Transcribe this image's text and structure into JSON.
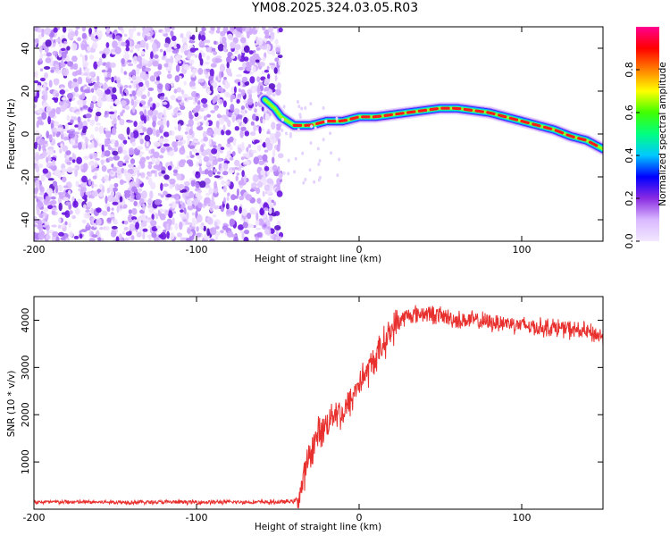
{
  "title": "YM08.2025.324.03.05.R03",
  "colors": {
    "axis": "#000000",
    "snr_line": "#e8302e",
    "noise": "#6a14e0",
    "ridge_core": "#e8302e"
  },
  "chart_data": [
    {
      "type": "heatmap",
      "title": "YM08.2025.324.03.05.R03",
      "xlabel": "Height of straight line (km)",
      "ylabel": "Frequency (Hz)",
      "xlim": [
        -200,
        150
      ],
      "ylim": [
        -50,
        50
      ],
      "xticks": [
        -200,
        -100,
        0,
        100
      ],
      "yticks": [
        -40,
        -20,
        0,
        20,
        40
      ],
      "xtick_labels": [
        "-200",
        "-100",
        "0",
        "100"
      ],
      "ytick_labels": [
        "-40",
        "-20",
        "0",
        "20",
        "40"
      ],
      "noise_region_x": [
        -200,
        -48
      ],
      "ridge": {
        "x": [
          -58,
          -52,
          -48,
          -40,
          -30,
          -20,
          -10,
          0,
          10,
          20,
          30,
          40,
          50,
          60,
          70,
          80,
          90,
          100,
          110,
          120,
          130,
          140,
          150
        ],
        "y": [
          16,
          12,
          8,
          4,
          4,
          6,
          6,
          8,
          8,
          9,
          10,
          11,
          12,
          12,
          11,
          10,
          8,
          6,
          4,
          2,
          -1,
          -3,
          -7
        ]
      },
      "colorbar": {
        "label": "Normalized spectral amplitude",
        "range": [
          0,
          1
        ],
        "ticks": [
          0.0,
          0.2,
          0.4,
          0.6,
          0.8
        ],
        "tick_labels": [
          "0.0",
          "0.2",
          "0.4",
          "0.6",
          "0.8"
        ],
        "colormap": [
          "#f2e8ff",
          "#d9b8ff",
          "#8a2be2",
          "#0000ff",
          "#00c8ff",
          "#00ff80",
          "#40ff00",
          "#ffff00",
          "#ff8000",
          "#ff0000",
          "#ff0090"
        ]
      }
    },
    {
      "type": "line",
      "xlabel": "Height of straight line (km)",
      "ylabel": "SNR (10 * v/v)",
      "xlim": [
        -200,
        150
      ],
      "ylim": [
        0,
        4500
      ],
      "xticks": [
        -200,
        -100,
        0,
        100
      ],
      "yticks": [
        1000,
        2000,
        3000,
        4000
      ],
      "xtick_labels": [
        "-200",
        "-100",
        "0",
        "100"
      ],
      "ytick_labels": [
        "1000",
        "2000",
        "3000",
        "4000"
      ],
      "series": [
        {
          "name": "SNR",
          "x": [
            -200,
            -150,
            -100,
            -50,
            -40,
            -37,
            -35,
            -33,
            -30,
            -25,
            -20,
            -15,
            -10,
            -5,
            0,
            5,
            10,
            15,
            20,
            25,
            30,
            40,
            50,
            60,
            70,
            80,
            90,
            100,
            110,
            120,
            130,
            140,
            150
          ],
          "values": [
            150,
            150,
            150,
            150,
            170,
            250,
            500,
            800,
            1200,
            1600,
            1800,
            2100,
            2000,
            2300,
            2700,
            2900,
            3200,
            3500,
            3800,
            4000,
            4100,
            4150,
            4100,
            4000,
            4000,
            3950,
            3950,
            3900,
            3850,
            3850,
            3800,
            3750,
            3650
          ]
        }
      ]
    }
  ]
}
